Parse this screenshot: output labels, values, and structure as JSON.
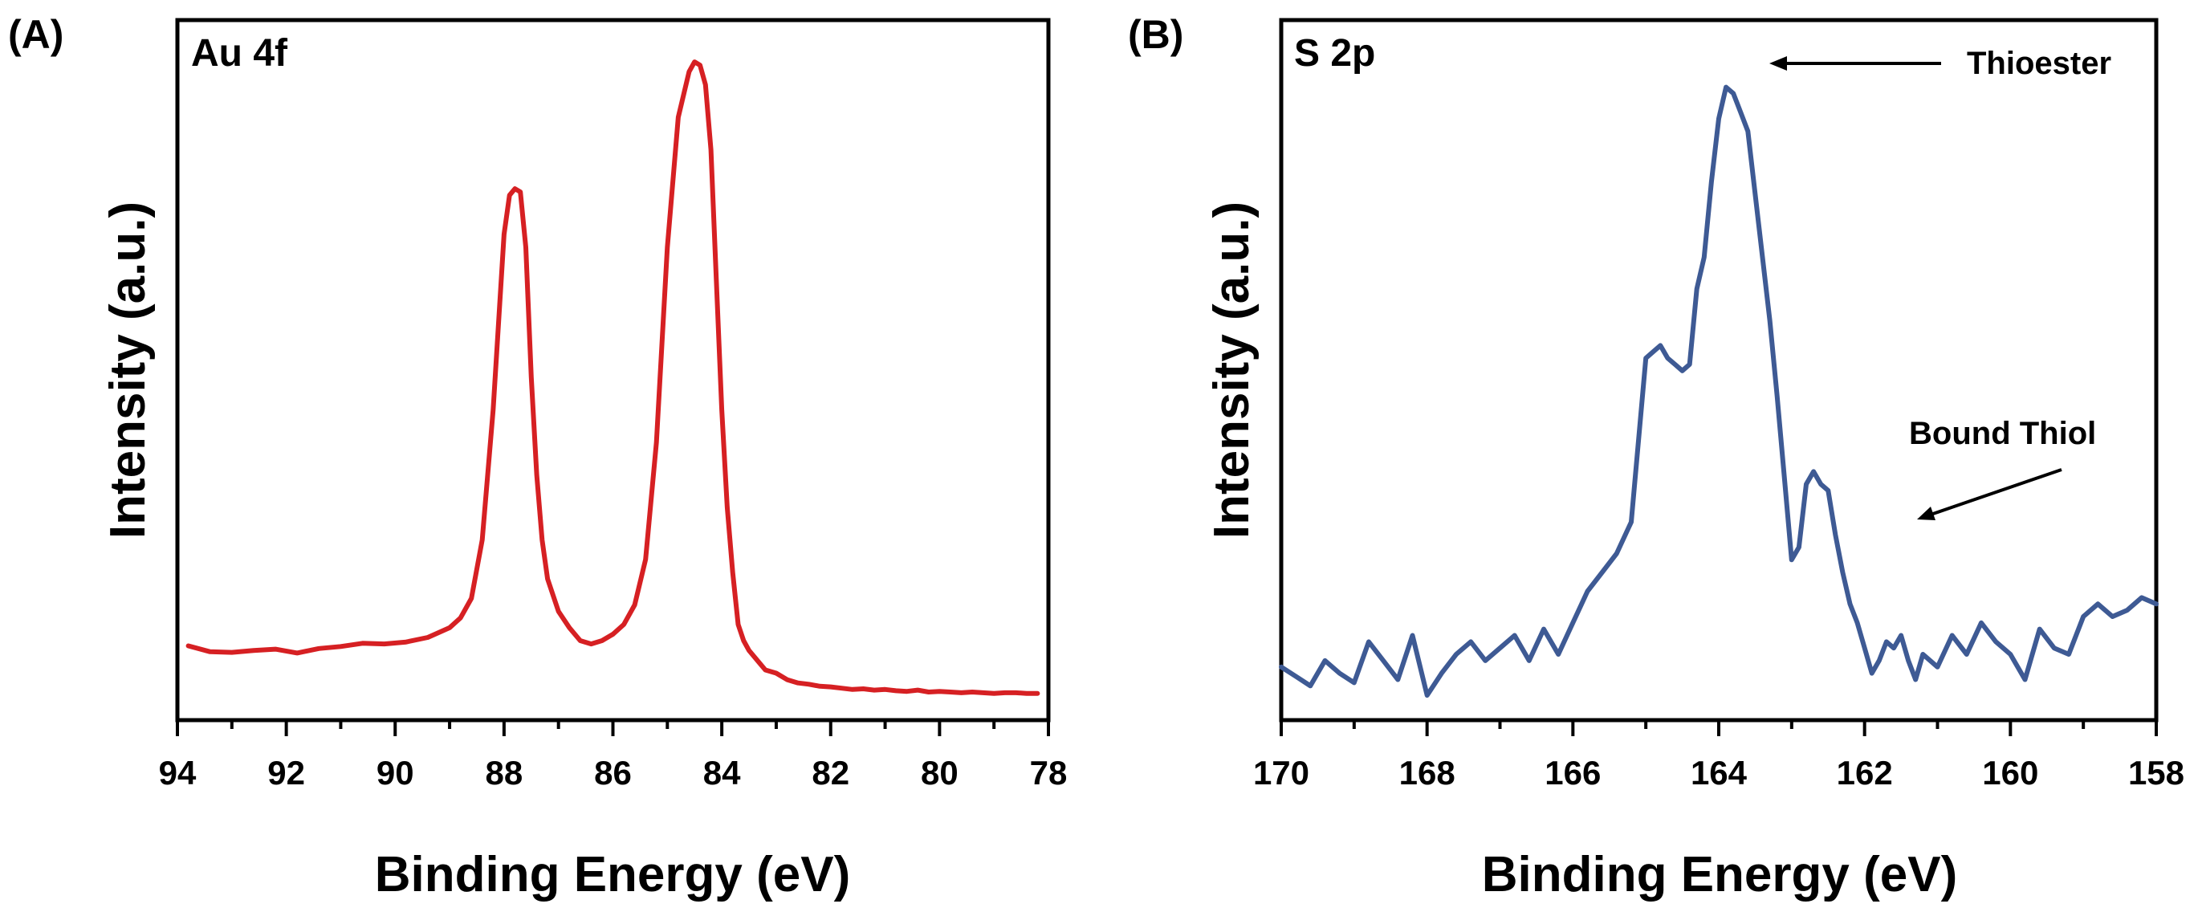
{
  "chart_data": [
    {
      "panel_label": "(A)",
      "type": "line",
      "title": "Au 4f",
      "xlabel": "Binding Energy (eV)",
      "ylabel": "Intensity (a.u.)",
      "xlim": [
        94,
        78
      ],
      "x_reversed": true,
      "y_ticks_shown": false,
      "ylim": [
        0,
        100
      ],
      "x_ticks": [
        94,
        92,
        90,
        88,
        86,
        84,
        82,
        80,
        78
      ],
      "grid": false,
      "series_color": "#d62023",
      "series": [
        {
          "x": [
            93.8,
            93.4,
            93.0,
            92.6,
            92.2,
            91.8,
            91.4,
            91.0,
            90.6,
            90.2,
            89.8,
            89.4,
            89.0,
            88.8,
            88.6,
            88.4,
            88.2,
            88.0,
            87.9,
            87.8,
            87.7,
            87.6,
            87.5,
            87.4,
            87.3,
            87.2,
            87.0,
            86.8,
            86.6,
            86.4,
            86.2,
            86.0,
            85.8,
            85.6,
            85.4,
            85.2,
            85.0,
            84.8,
            84.6,
            84.5,
            84.4,
            84.3,
            84.2,
            84.1,
            84.0,
            83.9,
            83.8,
            83.7,
            83.6,
            83.5,
            83.4,
            83.3,
            83.2,
            83.0,
            82.8,
            82.6,
            82.4,
            82.2,
            82.0,
            81.8,
            81.6,
            81.4,
            81.2,
            81.0,
            80.8,
            80.6,
            80.4,
            80.2,
            80.0,
            79.8,
            79.6,
            79.4,
            79.2,
            79.0,
            78.8,
            78.6,
            78.4,
            78.2
          ],
          "y": [
            8.7,
            7.8,
            7.7,
            8.0,
            8.2,
            7.6,
            8.3,
            8.6,
            9.1,
            9.0,
            9.3,
            10.0,
            11.5,
            13.0,
            16.0,
            25.0,
            45.0,
            72.0,
            78.0,
            79.0,
            78.5,
            70.0,
            50.0,
            35.0,
            25.0,
            19.0,
            14.0,
            11.5,
            9.5,
            9.0,
            9.5,
            10.5,
            12.0,
            15.0,
            22.0,
            40.0,
            70.0,
            90.0,
            97.0,
            98.5,
            98.0,
            95.0,
            85.0,
            65.0,
            45.0,
            30.0,
            20.0,
            12.0,
            9.5,
            8.0,
            7.0,
            6.0,
            5.0,
            4.5,
            3.5,
            3.0,
            2.8,
            2.5,
            2.4,
            2.2,
            2.0,
            2.1,
            1.9,
            2.0,
            1.8,
            1.7,
            1.9,
            1.6,
            1.7,
            1.6,
            1.5,
            1.6,
            1.5,
            1.4,
            1.5,
            1.5,
            1.4,
            1.4
          ]
        }
      ]
    },
    {
      "panel_label": "(B)",
      "type": "line",
      "title": "S 2p",
      "xlabel": "Binding Energy (eV)",
      "ylabel": "Intensity (a.u.)",
      "xlim": [
        170,
        158
      ],
      "x_reversed": true,
      "y_ticks_shown": false,
      "ylim": [
        0,
        100
      ],
      "x_ticks": [
        170,
        168,
        166,
        164,
        162,
        160,
        158
      ],
      "grid": false,
      "series_color": "#3e5a94",
      "annotations": [
        {
          "text": "Thioester",
          "x": 163.6,
          "y": 97.0
        },
        {
          "text": "Bound Thiol",
          "x": 161.7,
          "y": 31.0
        }
      ],
      "series": [
        {
          "x": [
            170.0,
            169.8,
            169.6,
            169.4,
            169.2,
            169.0,
            168.8,
            168.6,
            168.4,
            168.2,
            168.0,
            167.8,
            167.6,
            167.4,
            167.2,
            167.0,
            166.8,
            166.6,
            166.4,
            166.2,
            166.0,
            165.8,
            165.6,
            165.4,
            165.2,
            165.0,
            164.9,
            164.8,
            164.7,
            164.6,
            164.5,
            164.4,
            164.3,
            164.2,
            164.1,
            164.0,
            163.9,
            163.8,
            163.7,
            163.6,
            163.5,
            163.4,
            163.3,
            163.2,
            163.1,
            163.0,
            162.9,
            162.8,
            162.7,
            162.6,
            162.5,
            162.4,
            162.3,
            162.2,
            162.1,
            162.0,
            161.9,
            161.8,
            161.7,
            161.6,
            161.5,
            161.4,
            161.3,
            161.2,
            161.0,
            160.8,
            160.6,
            160.4,
            160.2,
            160.0,
            159.8,
            159.6,
            159.4,
            159.2,
            159.0,
            158.8,
            158.6,
            158.4,
            158.2,
            158.0
          ],
          "y": [
            5.0,
            3.5,
            2.0,
            6.0,
            4.0,
            2.5,
            9.0,
            6.0,
            3.0,
            10.0,
            0.5,
            4.0,
            7.0,
            9.0,
            6.0,
            8.0,
            10.0,
            6.0,
            11.0,
            7.0,
            12.0,
            17.0,
            20.0,
            23.0,
            28.0,
            54.0,
            55.0,
            56.0,
            54.0,
            53.0,
            52.0,
            53.0,
            65.0,
            70.0,
            82.0,
            92.0,
            97.0,
            96.0,
            93.0,
            90.0,
            80.0,
            70.0,
            60.0,
            48.0,
            35.0,
            22.0,
            24.0,
            34.0,
            36.0,
            34.0,
            33.0,
            26.0,
            20.0,
            15.0,
            12.0,
            8.0,
            4.0,
            6.0,
            9.0,
            8.0,
            10.0,
            6.0,
            3.0,
            7.0,
            5.0,
            10.0,
            7.0,
            12.0,
            9.0,
            7.0,
            3.0,
            11.0,
            8.0,
            7.0,
            13.0,
            15.0,
            13.0,
            14.0,
            16.0,
            15.0
          ]
        }
      ]
    }
  ]
}
